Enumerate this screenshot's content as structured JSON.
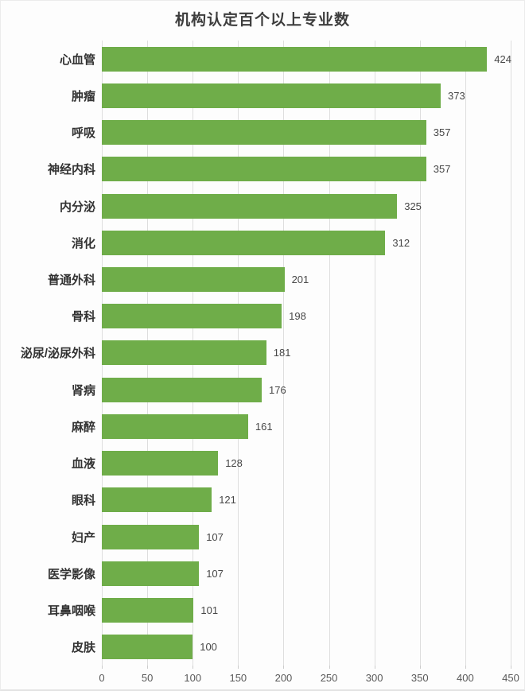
{
  "chart_data": {
    "type": "bar",
    "orientation": "horizontal",
    "title": "机构认定百个以上专业数",
    "categories": [
      "心血管",
      "肿瘤",
      "呼吸",
      "神经内科",
      "内分泌",
      "消化",
      "普通外科",
      "骨科",
      "泌尿/泌尿外科",
      "肾病",
      "麻醉",
      "血液",
      "眼科",
      "妇产",
      "医学影像",
      "耳鼻咽喉",
      "皮肤"
    ],
    "values": [
      424,
      373,
      357,
      357,
      325,
      312,
      201,
      198,
      181,
      176,
      161,
      128,
      121,
      107,
      107,
      101,
      100
    ],
    "xlabel": "",
    "ylabel": "",
    "xlim": [
      0,
      450
    ],
    "xticks": [
      0,
      50,
      100,
      150,
      200,
      250,
      300,
      350,
      400,
      450
    ],
    "grid": true,
    "bar_color": "#6fad49",
    "value_labels_shown": true,
    "legend": "none"
  }
}
